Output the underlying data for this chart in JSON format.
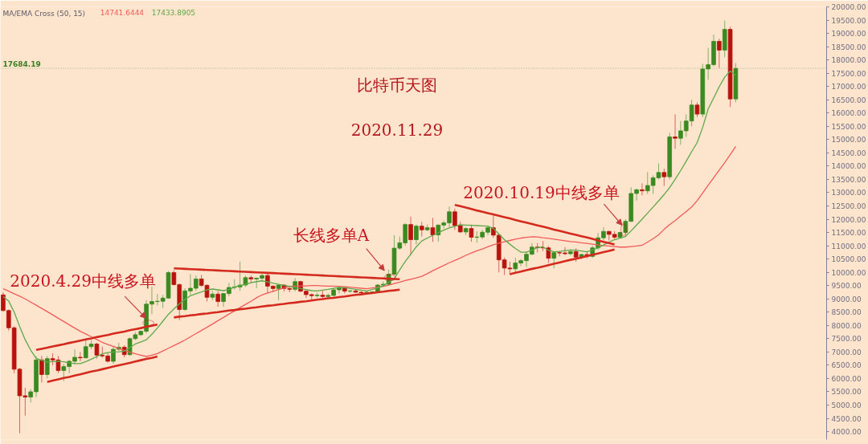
{
  "chart_data": {
    "type": "candlestick",
    "title": "比特币天图",
    "subtitle": "2020.11.29",
    "legend_title": "MA/EMA Cross (50, 15)",
    "legend": "top left",
    "tick_labels": "y",
    "annotations": [
      "2020.4.29中线多单",
      "长线多单A",
      "2020.10.19中线多单"
    ],
    "categories": [
      null,
      null,
      null,
      null,
      null,
      null,
      null,
      null,
      null,
      null,
      null,
      null,
      null,
      null,
      null,
      null,
      null,
      null,
      null,
      null,
      null,
      null,
      null,
      null,
      null,
      null,
      null,
      null,
      null,
      null,
      null,
      null,
      null,
      null,
      null,
      null,
      null,
      null,
      null,
      null,
      null,
      null,
      null,
      null,
      null,
      null,
      null,
      null,
      null,
      null,
      null,
      null,
      null,
      null,
      null,
      null,
      null,
      null,
      null,
      null,
      null,
      null,
      null,
      null,
      null,
      null,
      null,
      null,
      null,
      null,
      null,
      null,
      null,
      null,
      null,
      null,
      null,
      null,
      null,
      null,
      null,
      null,
      null,
      null,
      null,
      null,
      null,
      null,
      null,
      null,
      null,
      null,
      null,
      null,
      null,
      null,
      null,
      null,
      null,
      null,
      null,
      null,
      null,
      null,
      null,
      null,
      null,
      null,
      null,
      null,
      null,
      null,
      null,
      null,
      null,
      null,
      null,
      null,
      null,
      null,
      null,
      null,
      null,
      null,
      null,
      null,
      null,
      null,
      null,
      null,
      null,
      null,
      null,
      null,
      null,
      null,
      null,
      null,
      null,
      null,
      null,
      null,
      null,
      null,
      null,
      null,
      null,
      null,
      null,
      null
    ],
    "ohlc": [
      [
        9150,
        9250,
        8520,
        8560
      ],
      [
        8560,
        8600,
        7800,
        7910
      ],
      [
        7910,
        7970,
        6200,
        6350
      ],
      [
        6350,
        6400,
        3940,
        5350
      ],
      [
        5350,
        5650,
        4600,
        5300
      ],
      [
        5300,
        5600,
        5100,
        5500
      ],
      [
        5500,
        6850,
        5300,
        6700
      ],
      [
        6700,
        6850,
        5850,
        6150
      ],
      [
        6150,
        6850,
        6000,
        6750
      ],
      [
        6750,
        6950,
        6500,
        6700
      ],
      [
        6700,
        6850,
        6200,
        6300
      ],
      [
        6300,
        6550,
        5900,
        6450
      ],
      [
        6450,
        6700,
        6200,
        6650
      ],
      [
        6650,
        7100,
        6550,
        6800
      ],
      [
        6800,
        7000,
        6650,
        6780
      ],
      [
        6780,
        7450,
        6750,
        7200
      ],
      [
        7200,
        7450,
        7100,
        7300
      ],
      [
        7300,
        7350,
        6750,
        6880
      ],
      [
        6880,
        7200,
        6780,
        6850
      ],
      [
        6850,
        6950,
        6600,
        6650
      ],
      [
        6650,
        7200,
        6550,
        7100
      ],
      [
        7100,
        7350,
        7050,
        7180
      ],
      [
        7180,
        7250,
        6800,
        6900
      ],
      [
        6900,
        7550,
        6850,
        7500
      ],
      [
        7500,
        7750,
        7450,
        7650
      ],
      [
        7650,
        7800,
        7600,
        7780
      ],
      [
        7780,
        8950,
        7700,
        8800
      ],
      [
        8800,
        9460,
        8420,
        8900
      ],
      [
        8900,
        9190,
        8750,
        8910
      ],
      [
        8910,
        9150,
        8650,
        9030
      ],
      [
        9030,
        10050,
        9000,
        9990
      ],
      [
        9990,
        10070,
        9500,
        9540
      ],
      [
        9540,
        9570,
        8200,
        8600
      ],
      [
        8600,
        9400,
        8550,
        9300
      ],
      [
        9300,
        9930,
        9150,
        9400
      ],
      [
        9400,
        9880,
        9300,
        9750
      ],
      [
        9750,
        9900,
        9450,
        9510
      ],
      [
        9510,
        9550,
        8900,
        9060
      ],
      [
        9060,
        9300,
        8950,
        9180
      ],
      [
        9180,
        9300,
        8700,
        8900
      ],
      [
        8900,
        9230,
        8700,
        9200
      ],
      [
        9200,
        9600,
        9100,
        9430
      ],
      [
        9430,
        9740,
        9350,
        9450
      ],
      [
        9450,
        10400,
        9300,
        9520
      ],
      [
        9520,
        9880,
        9450,
        9800
      ],
      [
        9800,
        9880,
        9600,
        9750
      ],
      [
        9750,
        9800,
        9400,
        9780
      ],
      [
        9780,
        9950,
        9700,
        9880
      ],
      [
        9880,
        9960,
        9200,
        9480
      ],
      [
        9480,
        9500,
        9250,
        9390
      ],
      [
        9390,
        9550,
        8950,
        9520
      ],
      [
        9520,
        9550,
        9280,
        9390
      ],
      [
        9390,
        9440,
        9250,
        9360
      ],
      [
        9360,
        9780,
        9280,
        9650
      ],
      [
        9650,
        9680,
        9250,
        9290
      ],
      [
        9290,
        9320,
        9030,
        9160
      ],
      [
        9160,
        9200,
        8950,
        9120
      ],
      [
        9120,
        9230,
        9050,
        9140
      ],
      [
        9140,
        9300,
        9020,
        9090
      ],
      [
        9090,
        9200,
        9050,
        9130
      ],
      [
        9130,
        9380,
        9070,
        9340
      ],
      [
        9340,
        9450,
        9200,
        9430
      ],
      [
        9430,
        9450,
        9200,
        9290
      ],
      [
        9290,
        9330,
        9220,
        9300
      ],
      [
        9300,
        9340,
        9230,
        9250
      ],
      [
        9250,
        9290,
        9200,
        9230
      ],
      [
        9230,
        9270,
        9210,
        9250
      ],
      [
        9250,
        9280,
        9230,
        9260
      ],
      [
        9260,
        9560,
        9240,
        9520
      ],
      [
        9520,
        9650,
        9450,
        9550
      ],
      [
        9550,
        10100,
        9500,
        9930
      ],
      [
        9930,
        11400,
        9900,
        10910
      ],
      [
        10910,
        11350,
        10850,
        11110
      ],
      [
        11110,
        11850,
        11000,
        11800
      ],
      [
        11800,
        12100,
        10650,
        11230
      ],
      [
        11230,
        11800,
        11050,
        11740
      ],
      [
        11740,
        11900,
        11350,
        11600
      ],
      [
        11600,
        11800,
        11550,
        11680
      ],
      [
        11680,
        12050,
        11150,
        11410
      ],
      [
        11410,
        11800,
        11150,
        11780
      ],
      [
        11780,
        11950,
        11650,
        11860
      ],
      [
        11860,
        12480,
        11700,
        12280
      ],
      [
        12280,
        12400,
        11600,
        11760
      ],
      [
        11760,
        11900,
        11500,
        11520
      ],
      [
        11520,
        11700,
        11400,
        11650
      ],
      [
        11650,
        11800,
        11150,
        11320
      ],
      [
        11320,
        11550,
        11120,
        11330
      ],
      [
        11330,
        11600,
        11250,
        11510
      ],
      [
        11510,
        11750,
        11400,
        11680
      ],
      [
        11680,
        12150,
        11300,
        11400
      ],
      [
        11400,
        11450,
        10000,
        10470
      ],
      [
        10470,
        10560,
        9900,
        10160
      ],
      [
        10160,
        10400,
        9900,
        10130
      ],
      [
        10130,
        10550,
        10000,
        10350
      ],
      [
        10350,
        10500,
        10230,
        10440
      ],
      [
        10440,
        10800,
        10200,
        10680
      ],
      [
        10680,
        11100,
        10650,
        10950
      ],
      [
        10950,
        11100,
        10750,
        10930
      ],
      [
        10930,
        11180,
        10800,
        10920
      ],
      [
        10920,
        10990,
        10350,
        10530
      ],
      [
        10530,
        10760,
        10150,
        10740
      ],
      [
        10740,
        10800,
        10600,
        10730
      ],
      [
        10730,
        10950,
        10650,
        10700
      ],
      [
        10700,
        10860,
        10640,
        10780
      ],
      [
        10780,
        10900,
        10400,
        10570
      ],
      [
        10570,
        10700,
        10500,
        10670
      ],
      [
        10670,
        10800,
        10530,
        10600
      ],
      [
        10600,
        11000,
        10550,
        10920
      ],
      [
        10920,
        11480,
        10850,
        11300
      ],
      [
        11300,
        11700,
        11200,
        11540
      ],
      [
        11540,
        11560,
        11200,
        11430
      ],
      [
        11430,
        11550,
        11250,
        11320
      ],
      [
        11320,
        11520,
        11300,
        11500
      ],
      [
        11500,
        12000,
        11400,
        11920
      ],
      [
        11920,
        13200,
        11900,
        12970
      ],
      [
        12970,
        13150,
        12700,
        13110
      ],
      [
        13110,
        13350,
        12900,
        13070
      ],
      [
        13070,
        13780,
        12950,
        13270
      ],
      [
        13270,
        13650,
        12950,
        13560
      ],
      [
        13560,
        14100,
        13500,
        13760
      ],
      [
        13760,
        13900,
        13250,
        13600
      ],
      [
        13600,
        15250,
        13500,
        15100
      ],
      [
        15100,
        15950,
        14650,
        15050
      ],
      [
        15050,
        15700,
        14800,
        15330
      ],
      [
        15330,
        15950,
        15100,
        15700
      ],
      [
        15700,
        16500,
        15500,
        16300
      ],
      [
        16300,
        16400,
        15850,
        15960
      ],
      [
        15960,
        17850,
        15850,
        17660
      ],
      [
        17660,
        18450,
        17250,
        17820
      ],
      [
        17820,
        18950,
        17760,
        18700
      ],
      [
        18700,
        18800,
        17700,
        18370
      ],
      [
        18370,
        19480,
        18100,
        19150
      ],
      [
        19150,
        19250,
        16230,
        16530
      ],
      [
        16530,
        17880,
        16400,
        17680
      ],
      null,
      null,
      null,
      null,
      null,
      null,
      null,
      null,
      null,
      null,
      null,
      null,
      null,
      null,
      null,
      null
    ],
    "series": [
      {
        "name": "14741.6444",
        "color": "#f05a5a",
        "type": "line",
        "values": [
          9380,
          9290,
          9190,
          9100,
          9000,
          8880,
          8760,
          8640,
          8520,
          8400,
          8270,
          8150,
          8020,
          7900,
          7780,
          7680,
          7570,
          7470,
          7360,
          7280,
          7210,
          7130,
          7060,
          6990,
          6930,
          6880,
          6830,
          6880,
          6940,
          7040,
          7140,
          7240,
          7340,
          7450,
          7570,
          7690,
          7810,
          7930,
          8050,
          8180,
          8300,
          8430,
          8550,
          8670,
          8790,
          8910,
          9040,
          9150,
          9220,
          9280,
          9350,
          9410,
          9470,
          9480,
          9490,
          9490,
          9500,
          9500,
          9490,
          9480,
          9480,
          9470,
          9460,
          9440,
          9420,
          9400,
          9380,
          9410,
          9440,
          9470,
          9520,
          9580,
          9630,
          9690,
          9740,
          9790,
          9850,
          9950,
          10060,
          10160,
          10260,
          10360,
          10450,
          10540,
          10640,
          10730,
          10810,
          10880,
          10960,
          11040,
          11100,
          11150,
          11200,
          11250,
          11290,
          11320,
          11340,
          11330,
          11300,
          11280,
          11250,
          11220,
          11190,
          11160,
          11140,
          11110,
          11090,
          11060,
          11030,
          11010,
          10990,
          10970,
          10950,
          10950,
          10970,
          10990,
          11020,
          11140,
          11270,
          11410,
          11620,
          11800,
          11950,
          12120,
          12290,
          12460,
          12700,
          12990,
          13280,
          13560,
          13850,
          14130,
          14430,
          14740,
          null,
          null,
          null,
          null,
          null,
          null,
          null,
          null,
          null,
          null,
          null,
          null,
          null,
          null,
          null,
          null
        ]
      },
      {
        "name": "17433.8905",
        "color": "#5fa84a",
        "type": "line",
        "values": [
          9090,
          8920,
          8500,
          7960,
          7460,
          7070,
          6760,
          6680,
          6620,
          6640,
          6650,
          6630,
          6590,
          6560,
          6560,
          6640,
          6730,
          6830,
          6930,
          6980,
          7000,
          7010,
          7030,
          7170,
          7300,
          7380,
          7460,
          7670,
          7900,
          8160,
          8420,
          8620,
          8820,
          8980,
          9120,
          9190,
          9260,
          9340,
          9370,
          9340,
          9310,
          9350,
          9440,
          9500,
          9550,
          9610,
          9650,
          9680,
          9640,
          9590,
          9550,
          9510,
          9470,
          9430,
          9390,
          9350,
          9310,
          9300,
          9330,
          9360,
          9400,
          9430,
          9420,
          9390,
          9360,
          9330,
          9300,
          9350,
          9410,
          9490,
          9630,
          9760,
          10090,
          10410,
          10680,
          10960,
          11180,
          11290,
          11390,
          11490,
          11590,
          11670,
          11730,
          11790,
          11780,
          11770,
          11760,
          11750,
          11740,
          11650,
          11440,
          11230,
          11060,
          10900,
          10760,
          10760,
          10830,
          10930,
          10960,
          10830,
          10770,
          10790,
          10820,
          10840,
          10830,
          10800,
          10770,
          10840,
          10920,
          11030,
          11140,
          11230,
          11290,
          11350,
          11560,
          11780,
          12000,
          12230,
          12460,
          12690,
          12930,
          13190,
          13500,
          13830,
          14180,
          14540,
          14890,
          15460,
          16150,
          16570,
          16990,
          17350,
          17580,
          17430,
          null,
          null,
          null,
          null,
          null,
          null,
          null,
          null,
          null,
          null,
          null,
          null,
          null,
          null,
          null,
          null
        ]
      },
      {
        "color": "#d42a1e",
        "type": "line",
        "values": [
          null,
          null,
          null,
          null,
          null,
          null,
          7080,
          7120,
          7160,
          7210,
          7250,
          7290,
          7340,
          7380,
          7430,
          7470,
          7510,
          7560,
          7600,
          7640,
          7690,
          7730,
          7770,
          7820,
          7860,
          7900,
          7950,
          7990,
          8030,
          null,
          null,
          null,
          null,
          null,
          null,
          null,
          null,
          null,
          null,
          null,
          null,
          null,
          null,
          null,
          null,
          null,
          null,
          null,
          null,
          null,
          null,
          null,
          null,
          null,
          null,
          null,
          null,
          null,
          null,
          null,
          null,
          null,
          null,
          null,
          null,
          null,
          null,
          null,
          null,
          null,
          null,
          null,
          null,
          null,
          null,
          null,
          null,
          null,
          null,
          null,
          null,
          null,
          null,
          null,
          null,
          null,
          null,
          null,
          null,
          null,
          null,
          null,
          null,
          null,
          null,
          null,
          null,
          null,
          null,
          null,
          null,
          null,
          null,
          null,
          null,
          null,
          null,
          null,
          null,
          null,
          null,
          null,
          null,
          null,
          null,
          null,
          null,
          null,
          null,
          null,
          null,
          null,
          null,
          null,
          null,
          null,
          null,
          null,
          null,
          null,
          null,
          null,
          null,
          null,
          null,
          null,
          null,
          null,
          null,
          null,
          null,
          null,
          null,
          null,
          null,
          null,
          null,
          null,
          null,
          null
        ]
      },
      {
        "color": "#d42a1e",
        "type": "line",
        "values": [
          null,
          null,
          null,
          null,
          null,
          null,
          null,
          null,
          5870,
          5920,
          5970,
          6020,
          6060,
          6110,
          6160,
          6210,
          6260,
          6300,
          6350,
          6400,
          6450,
          6500,
          6540,
          6590,
          6640,
          6690,
          6740,
          6780,
          6830,
          null,
          null,
          null,
          null,
          null,
          null,
          null,
          null,
          null,
          null,
          null,
          null,
          null,
          null,
          null,
          null,
          null,
          null,
          null,
          null,
          null,
          null,
          null,
          null,
          null,
          null,
          null,
          null,
          null,
          null,
          null,
          null,
          null,
          null,
          null,
          null,
          null,
          null,
          null,
          null,
          null,
          null,
          null,
          null,
          null,
          null,
          null,
          null,
          null,
          null,
          null,
          null,
          null,
          null,
          null,
          null,
          null,
          null,
          null,
          null,
          null,
          null,
          null,
          null,
          null,
          null,
          null,
          null,
          null,
          null,
          null,
          null,
          null,
          null,
          null,
          null,
          null,
          null,
          null,
          null,
          null,
          null,
          null,
          null,
          null,
          null,
          null,
          null,
          null,
          null,
          null,
          null,
          null,
          null,
          null,
          null,
          null,
          null,
          null,
          null,
          null,
          null,
          null,
          null,
          null,
          null,
          null,
          null,
          null,
          null,
          null,
          null,
          null,
          null,
          null,
          null,
          null,
          null,
          null,
          null,
          null
        ]
      },
      {
        "color": "#d42a1e",
        "type": "line",
        "values": [
          null,
          null,
          null,
          null,
          null,
          null,
          null,
          null,
          null,
          null,
          null,
          null,
          null,
          null,
          null,
          null,
          null,
          null,
          null,
          null,
          null,
          null,
          null,
          null,
          null,
          null,
          null,
          null,
          null,
          null,
          null,
          10150,
          10140,
          10130,
          10120,
          10110,
          10100,
          10090,
          10080,
          10070,
          10060,
          10050,
          10040,
          10030,
          10020,
          10010,
          10000,
          9990,
          9980,
          9970,
          9960,
          9950,
          9940,
          9930,
          9920,
          9910,
          9900,
          9890,
          9880,
          9870,
          9860,
          9850,
          9840,
          9830,
          9820,
          9810,
          9800,
          9790,
          9780,
          9770,
          9760,
          9750,
          9740,
          null,
          null,
          null,
          null,
          null,
          null,
          null,
          null,
          null,
          null,
          null,
          null,
          null,
          null,
          null,
          null,
          null,
          null,
          null,
          null,
          null,
          null,
          null,
          null,
          null,
          null,
          null,
          null,
          null,
          null,
          null,
          null,
          null,
          null,
          null,
          null,
          null,
          null,
          null,
          null,
          null,
          null,
          null,
          null,
          null,
          null,
          null,
          null,
          null,
          null,
          null,
          null,
          null,
          null,
          null,
          null,
          null,
          null,
          null,
          null,
          null,
          null,
          null,
          null,
          null,
          null,
          null,
          null,
          null,
          null,
          null,
          null,
          null,
          null,
          null,
          null,
          null
        ]
      },
      {
        "color": "#d42a1e",
        "type": "line",
        "values": [
          null,
          null,
          null,
          null,
          null,
          null,
          null,
          null,
          null,
          null,
          null,
          null,
          null,
          null,
          null,
          null,
          null,
          null,
          null,
          null,
          null,
          null,
          null,
          null,
          null,
          null,
          null,
          null,
          null,
          null,
          null,
          8300,
          8330,
          8350,
          8380,
          8400,
          8430,
          8450,
          8480,
          8500,
          8530,
          8560,
          8580,
          8610,
          8630,
          8660,
          8680,
          8710,
          8740,
          8760,
          8790,
          8810,
          8840,
          8860,
          8890,
          8910,
          8940,
          8970,
          8990,
          9020,
          9040,
          9070,
          9090,
          9120,
          9150,
          9170,
          9200,
          9220,
          9250,
          9270,
          9300,
          9320,
          9350,
          null,
          null,
          null,
          null,
          null,
          null,
          null,
          null,
          null,
          null,
          null,
          null,
          null,
          null,
          null,
          null,
          null,
          null,
          null,
          null,
          null,
          null,
          null,
          null,
          null,
          null,
          null,
          null,
          null,
          null,
          null,
          null,
          null,
          null,
          null,
          null,
          null,
          null,
          null,
          null,
          null,
          null,
          null,
          null,
          null,
          null,
          null,
          null,
          null,
          null,
          null,
          null,
          null,
          null,
          null,
          null,
          null,
          null,
          null,
          null,
          null,
          null,
          null,
          null,
          null,
          null,
          null,
          null,
          null,
          null,
          null,
          null,
          null,
          null,
          null,
          null,
          null
        ]
      },
      {
        "color": "#d42a1e",
        "type": "line",
        "values": [
          null,
          null,
          null,
          null,
          null,
          null,
          null,
          null,
          null,
          null,
          null,
          null,
          null,
          null,
          null,
          null,
          null,
          null,
          null,
          null,
          null,
          null,
          null,
          null,
          null,
          null,
          null,
          null,
          null,
          null,
          null,
          null,
          null,
          null,
          null,
          null,
          null,
          null,
          null,
          null,
          null,
          null,
          null,
          null,
          null,
          null,
          null,
          null,
          null,
          null,
          null,
          null,
          null,
          null,
          null,
          null,
          null,
          null,
          null,
          null,
          null,
          null,
          null,
          null,
          null,
          null,
          null,
          null,
          null,
          null,
          null,
          null,
          null,
          null,
          null,
          null,
          null,
          null,
          null,
          null,
          null,
          null,
          12540,
          12490,
          12440,
          12390,
          12330,
          12280,
          12230,
          12180,
          12130,
          12080,
          12030,
          11970,
          11920,
          11870,
          11820,
          11770,
          11720,
          11670,
          11610,
          11560,
          11510,
          11460,
          11410,
          11360,
          11310,
          11260,
          11200,
          11150,
          11100,
          11050,
          null,
          null,
          null,
          null,
          null,
          null,
          null,
          null,
          null,
          null,
          null,
          null,
          null,
          null,
          null,
          null,
          null,
          null,
          null,
          null,
          null,
          null,
          null,
          null,
          null,
          null,
          null,
          null,
          null,
          null,
          null,
          null,
          null,
          null,
          null,
          null,
          null,
          null
        ]
      },
      {
        "color": "#d42a1e",
        "type": "line",
        "values": [
          null,
          null,
          null,
          null,
          null,
          null,
          null,
          null,
          null,
          null,
          null,
          null,
          null,
          null,
          null,
          null,
          null,
          null,
          null,
          null,
          null,
          null,
          null,
          null,
          null,
          null,
          null,
          null,
          null,
          null,
          null,
          null,
          null,
          null,
          null,
          null,
          null,
          null,
          null,
          null,
          null,
          null,
          null,
          null,
          null,
          null,
          null,
          null,
          null,
          null,
          null,
          null,
          null,
          null,
          null,
          null,
          null,
          null,
          null,
          null,
          null,
          null,
          null,
          null,
          null,
          null,
          null,
          null,
          null,
          null,
          null,
          null,
          null,
          null,
          null,
          null,
          null,
          null,
          null,
          null,
          null,
          null,
          null,
          null,
          null,
          null,
          null,
          null,
          null,
          null,
          null,
          null,
          9930,
          9980,
          10030,
          10080,
          10130,
          10170,
          10220,
          10270,
          10320,
          10370,
          10420,
          10470,
          10510,
          10560,
          10610,
          10660,
          10710,
          10760,
          10810,
          10860,
          null,
          null,
          null,
          null,
          null,
          null,
          null,
          null,
          null,
          null,
          null,
          null,
          null,
          null,
          null,
          null,
          null,
          null,
          null,
          null,
          null,
          null,
          null,
          null,
          null,
          null,
          null,
          null,
          null,
          null,
          null,
          null,
          null,
          null,
          null,
          null,
          null,
          null
        ]
      }
    ],
    "ref_lines": [
      {
        "axis": "y",
        "value": 17684.19,
        "label": "17684.19",
        "color": "#3a7d22",
        "line_style": "dotted"
      }
    ],
    "ylim": [
      3700,
      20000
    ],
    "yticks": [
      {
        "value": 4000,
        "label": "4000.00"
      },
      {
        "value": 4500,
        "label": "4500.00"
      },
      {
        "value": 5000,
        "label": "5000.00"
      },
      {
        "value": 5500,
        "label": "5500.00"
      },
      {
        "value": 6000,
        "label": "6000.00"
      },
      {
        "value": 6500,
        "label": "6500.00"
      },
      {
        "value": 7000,
        "label": "7000.00"
      },
      {
        "value": 7500,
        "label": "7500.00"
      },
      {
        "value": 8000,
        "label": "8000.00"
      },
      {
        "value": 8500,
        "label": "8500.00"
      },
      {
        "value": 9000,
        "label": "9000.00"
      },
      {
        "value": 9500,
        "label": "9500.00"
      },
      {
        "value": 10000,
        "label": "10000.00"
      },
      {
        "value": 10500,
        "label": "10500.00"
      },
      {
        "value": 11000,
        "label": "11000.00"
      },
      {
        "value": 11500,
        "label": "11500.00"
      },
      {
        "value": 12000,
        "label": "12000.00"
      },
      {
        "value": 12500,
        "label": "12500.00"
      },
      {
        "value": 13000,
        "label": "13000.00"
      },
      {
        "value": 13500,
        "label": "13500.00"
      },
      {
        "value": 14000,
        "label": "14000.00"
      },
      {
        "value": 14500,
        "label": "14500.00"
      },
      {
        "value": 15000,
        "label": "15000.00"
      },
      {
        "value": 15500,
        "label": "15500.00"
      },
      {
        "value": 16000,
        "label": "16000.00"
      },
      {
        "value": 16500,
        "label": "16500.00"
      },
      {
        "value": 17000,
        "label": "17000.00"
      },
      {
        "value": 17500,
        "label": "17500.00"
      },
      {
        "value": 18000,
        "label": "18000.00"
      },
      {
        "value": 18500,
        "label": "18500.00"
      },
      {
        "value": 19000,
        "label": "19000.00"
      },
      {
        "value": 19500,
        "label": "19500.00"
      },
      {
        "value": 20000,
        "label": "20000.00"
      }
    ]
  }
}
